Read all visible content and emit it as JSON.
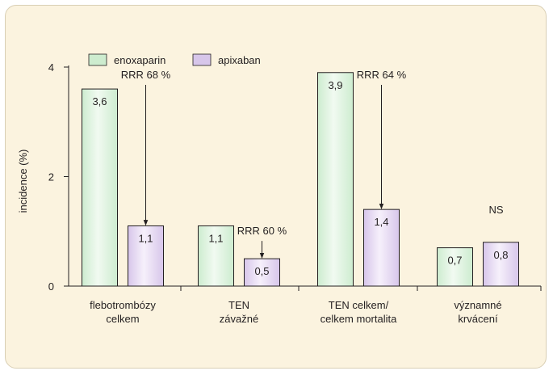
{
  "colors": {
    "enoxaparin_fill": "#cdeccf",
    "enoxaparin_fill_light": "#f1faf1",
    "apixaban_fill": "#d7c6ea",
    "apixaban_fill_light": "#f6f0fb",
    "stroke": "#231f20",
    "background": "#fbf3df"
  },
  "chart_data": {
    "type": "bar",
    "ylabel": "incidence (%)",
    "xlabel": "",
    "ylim": [
      0,
      4
    ],
    "yticks": [
      "0",
      "2",
      "4"
    ],
    "grid": false,
    "legend_position": "top-left",
    "categories": [
      [
        "flebotrombózy",
        "celkem"
      ],
      [
        "TEN",
        "závažné"
      ],
      [
        "TEN celkem/",
        "celkem mortalita"
      ],
      [
        "významné",
        "krvácení"
      ]
    ],
    "series": [
      {
        "name": "enoxaparin",
        "values": [
          3.6,
          1.1,
          3.9,
          0.7
        ],
        "labels": [
          "3,6",
          "1,1",
          "3,9",
          "0,7"
        ]
      },
      {
        "name": "apixaban",
        "values": [
          1.1,
          0.5,
          1.4,
          0.8
        ],
        "labels": [
          "1,1",
          "0,5",
          "1,4",
          "0,8"
        ]
      }
    ],
    "annotations": [
      {
        "text": "RRR 68 %",
        "category_index": 0,
        "arrow": true,
        "value": 4
      },
      {
        "text": "RRR 60 %",
        "category_index": 1,
        "arrow": true,
        "value": 1.15
      },
      {
        "text": "RRR 64 %",
        "category_index": 2,
        "arrow": true,
        "value": 4
      },
      {
        "text": "NS",
        "category_index": 3,
        "arrow": false,
        "value": 1.4
      }
    ]
  }
}
